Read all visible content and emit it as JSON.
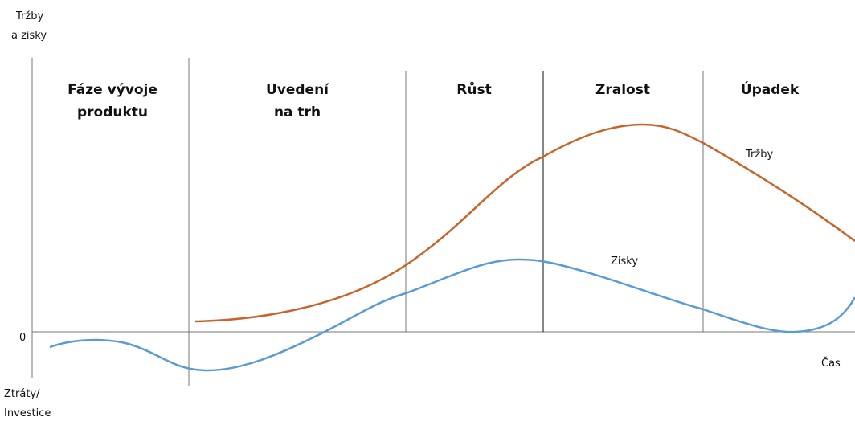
{
  "axis": {
    "y_top": [
      "Tržby",
      "a zisky"
    ],
    "y_bottom": [
      "Ztráty/",
      "Investice"
    ],
    "zero": "0",
    "x_label": "Čas"
  },
  "phases": [
    [
      "Fáze vývoje",
      "produktu"
    ],
    [
      "Uvedení",
      "na trh"
    ],
    [
      "Růst"
    ],
    [
      "Zralost"
    ],
    [
      "Úpadek"
    ]
  ],
  "curves": {
    "sales": "Tržby",
    "profits": "Zisky"
  }
}
